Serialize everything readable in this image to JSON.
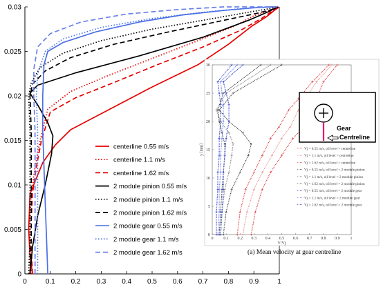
{
  "chart_data": [
    {
      "type": "line",
      "xlim": [
        0,
        1
      ],
      "ylim": [
        0,
        0.03
      ],
      "x_ticks": [
        0,
        0.1,
        0.2,
        0.3,
        0.4,
        0.5,
        0.6,
        0.7,
        0.8,
        0.9,
        1
      ],
      "y_ticks": [
        0,
        0.005,
        0.01,
        0.015,
        0.02,
        0.025,
        0.03
      ],
      "grid": false,
      "legend_position": "center-left",
      "series": [
        {
          "name": "centerline 0.55 m/s",
          "color": "#e60000",
          "dash": "solid",
          "x": [
            0.03,
            0.02,
            0.015,
            0.02,
            0.07,
            0.12,
            0.18,
            0.32,
            0.5,
            0.68,
            0.8,
            0.89,
            0.95,
            0.98,
            1.0
          ],
          "y": [
            0,
            0.002,
            0.005,
            0.009,
            0.0125,
            0.0145,
            0.0162,
            0.0183,
            0.021,
            0.0235,
            0.0258,
            0.0278,
            0.0289,
            0.0296,
            0.03
          ]
        },
        {
          "name": "centerline 1.1 m/s",
          "color": "#e60000",
          "dash": "dot",
          "x": [
            0.025,
            0.02,
            0.02,
            0.025,
            0.04,
            0.06,
            0.09,
            0.18,
            0.32,
            0.5,
            0.68,
            0.82,
            0.9,
            0.96,
            0.99
          ],
          "y": [
            0,
            0.003,
            0.006,
            0.009,
            0.012,
            0.015,
            0.0185,
            0.0205,
            0.0222,
            0.0242,
            0.0262,
            0.0278,
            0.029,
            0.0296,
            0.03
          ]
        },
        {
          "name": "centerline 1.62 m/s",
          "color": "#e60000",
          "dash": "dash",
          "x": [
            0.03,
            0.025,
            0.025,
            0.03,
            0.045,
            0.065,
            0.1,
            0.2,
            0.35,
            0.52,
            0.7,
            0.85,
            0.93,
            0.97,
            0.99
          ],
          "y": [
            0,
            0.003,
            0.006,
            0.009,
            0.012,
            0.015,
            0.0182,
            0.0198,
            0.0215,
            0.0235,
            0.0255,
            0.0274,
            0.0287,
            0.0295,
            0.03
          ]
        },
        {
          "name": "2 module pinion 0.55 m/s",
          "color": "#000000",
          "dash": "solid",
          "x": [
            0.02,
            0.03,
            0.05,
            0.08,
            0.105,
            0.11,
            0.09,
            0.05,
            0.02,
            0.05,
            0.2,
            0.45,
            0.7,
            0.88,
            0.96,
            0.995
          ],
          "y": [
            0,
            0.003,
            0.0065,
            0.01,
            0.0135,
            0.0155,
            0.017,
            0.019,
            0.0203,
            0.0212,
            0.0226,
            0.0245,
            0.0266,
            0.0285,
            0.0295,
            0.03
          ]
        },
        {
          "name": "2 module pinion 1.1 m/s",
          "color": "#000000",
          "dash": "dot",
          "x": [
            0.015,
            0.02,
            0.02,
            0.02,
            0.02,
            0.015,
            0.025,
            0.06,
            0.15,
            0.3,
            0.5,
            0.72,
            0.88,
            0.96,
            0.99
          ],
          "y": [
            0,
            0.004,
            0.008,
            0.012,
            0.016,
            0.02,
            0.0215,
            0.0232,
            0.0248,
            0.0262,
            0.0275,
            0.0286,
            0.0294,
            0.0298,
            0.03
          ]
        },
        {
          "name": "2 module pinion 1.62 m/s",
          "color": "#000000",
          "dash": "dash",
          "x": [
            0.02,
            0.025,
            0.025,
            0.025,
            0.025,
            0.02,
            0.03,
            0.08,
            0.18,
            0.35,
            0.55,
            0.75,
            0.9,
            0.97,
            0.995
          ],
          "y": [
            0,
            0.004,
            0.008,
            0.012,
            0.016,
            0.02,
            0.0213,
            0.0228,
            0.0243,
            0.0258,
            0.0271,
            0.0283,
            0.0292,
            0.0297,
            0.03
          ]
        },
        {
          "name": "2 module gear 0.55 m/s",
          "color": "#4a6fe6",
          "dash": "solid",
          "x": [
            0.09,
            0.085,
            0.08,
            0.075,
            0.07,
            0.07,
            0.075,
            0.09,
            0.15,
            0.28,
            0.45,
            0.62,
            0.78,
            0.9,
            0.97,
            0.99
          ],
          "y": [
            0,
            0.004,
            0.008,
            0.012,
            0.016,
            0.02,
            0.0235,
            0.025,
            0.026,
            0.0272,
            0.0283,
            0.0291,
            0.0296,
            0.0299,
            0.03,
            0.03
          ]
        },
        {
          "name": "2 module gear 1.1 m/s",
          "color": "#4a6fe6",
          "dash": "dot",
          "x": [
            0.05,
            0.05,
            0.05,
            0.05,
            0.05,
            0.045,
            0.05,
            0.08,
            0.15,
            0.3,
            0.5,
            0.7,
            0.85,
            0.95,
            0.99
          ],
          "y": [
            0,
            0.004,
            0.008,
            0.012,
            0.016,
            0.02,
            0.0225,
            0.025,
            0.0264,
            0.0277,
            0.0287,
            0.0294,
            0.0298,
            0.03,
            0.03
          ]
        },
        {
          "name": "2 module gear 1.62 m/s",
          "color": "#6a80ea",
          "dash": "dash",
          "x": [
            0.04,
            0.04,
            0.04,
            0.04,
            0.04,
            0.035,
            0.035,
            0.05,
            0.1,
            0.22,
            0.4,
            0.6,
            0.78,
            0.92,
            0.99
          ],
          "y": [
            0,
            0.004,
            0.008,
            0.012,
            0.016,
            0.02,
            0.023,
            0.0255,
            0.027,
            0.0283,
            0.0292,
            0.0297,
            0.03,
            0.03,
            0.03
          ]
        }
      ]
    },
    {
      "type": "line",
      "title": "(a) Mean velocity at gear centreline",
      "xlabel": "V/Vj",
      "ylabel": "y [mm]",
      "xlim": [
        0,
        1
      ],
      "ylim": [
        0,
        30
      ],
      "x_ticks": [
        "0",
        "0.1",
        "0.2",
        "0.3",
        "0.4",
        "0.5",
        "0.6",
        "0.7",
        "0.8",
        "0.9",
        "1"
      ],
      "y_ticks": [
        "0",
        "5",
        "10",
        "15",
        "20",
        "25",
        "30"
      ],
      "legend_position": "right",
      "inset_label": {
        "gear": "Gear",
        "centreline": "Centreline"
      },
      "legend": [
        {
          "text": "Vj = 0.55 m/s, oil level = centreline",
          "color": "#e04040",
          "marker": "+"
        },
        {
          "text": "Vj = 1.1 m/s, oil level = centreline",
          "color": "#e89090",
          "marker": "x"
        },
        {
          "text": "Vj = 1.62 m/s, oil level = centreline",
          "color": "#e04040",
          "marker": "+"
        },
        {
          "text": "Vj = 0.55 m/s, oil level = 2 module pinion",
          "color": "#444444",
          "marker": "+"
        },
        {
          "text": "Vj = 1.1 m/s, oil level = 2 module pinion",
          "color": "#888888",
          "marker": "x"
        },
        {
          "text": "Vj = 1.62 m/s, oil level = 2 module pinion",
          "color": "#444444",
          "marker": "+"
        },
        {
          "text": "Vj = 0.55 m/s, oil level = 2 module gear",
          "color": "#3040d0",
          "marker": "+"
        },
        {
          "text": "Vj = 1.1 m/s, oil level = 2 module gear",
          "color": "#7080e0",
          "marker": "x"
        },
        {
          "text": "Vj = 1.62 m/s, oil level = 2 module gear",
          "color": "#3040d0",
          "marker": "+"
        }
      ],
      "series": [
        {
          "color": "#e04040",
          "x": [
            0.28,
            0.31,
            0.36,
            0.42,
            0.5,
            0.58,
            0.66,
            0.72,
            0.75,
            0.8,
            0.9
          ],
          "y": [
            0,
            4,
            8,
            11,
            14,
            17,
            19,
            22,
            24,
            27,
            30
          ]
        },
        {
          "color": "#e89090",
          "x": [
            0.22,
            0.25,
            0.3,
            0.36,
            0.43,
            0.5,
            0.56,
            0.62,
            0.67,
            0.75,
            0.86
          ],
          "y": [
            0,
            4,
            8,
            11,
            14,
            17,
            19,
            22,
            24,
            27,
            30
          ]
        },
        {
          "color": "#e04040",
          "x": [
            0.18,
            0.2,
            0.24,
            0.3,
            0.36,
            0.42,
            0.48,
            0.55,
            0.62,
            0.72,
            0.84
          ],
          "y": [
            0,
            4,
            8,
            11,
            14,
            17,
            19,
            22,
            24,
            27,
            30
          ]
        },
        {
          "color": "#444444",
          "x": [
            0.08,
            0.1,
            0.14,
            0.2,
            0.26,
            0.28,
            0.22,
            0.12,
            0.05,
            0.15,
            0.5
          ],
          "y": [
            0,
            4,
            8,
            11,
            14,
            16,
            18,
            20,
            22,
            25,
            30
          ]
        },
        {
          "color": "#888888",
          "x": [
            0.06,
            0.07,
            0.09,
            0.12,
            0.14,
            0.15,
            0.12,
            0.06,
            0.03,
            0.1,
            0.42
          ],
          "y": [
            0,
            4,
            8,
            11,
            14,
            16,
            18,
            20,
            22,
            25,
            30
          ]
        },
        {
          "color": "#444444",
          "x": [
            0.05,
            0.06,
            0.07,
            0.08,
            0.09,
            0.09,
            0.07,
            0.05,
            0.04,
            0.08,
            0.35
          ],
          "y": [
            0,
            4,
            8,
            11,
            14,
            16,
            18,
            20,
            22,
            25,
            30
          ]
        },
        {
          "color": "#3040d0",
          "x": [
            0.06,
            0.07,
            0.08,
            0.08,
            0.09,
            0.1,
            0.12,
            0.12,
            0.1,
            0.08,
            0.22
          ],
          "y": [
            0,
            4,
            8,
            11,
            14,
            17,
            20,
            23,
            25,
            27,
            30
          ]
        },
        {
          "color": "#7080e0",
          "x": [
            0.04,
            0.05,
            0.05,
            0.06,
            0.06,
            0.07,
            0.08,
            0.08,
            0.07,
            0.06,
            0.18
          ],
          "y": [
            0,
            4,
            8,
            11,
            14,
            17,
            20,
            23,
            25,
            27,
            30
          ]
        },
        {
          "color": "#3040d0",
          "x": [
            0.03,
            0.03,
            0.04,
            0.04,
            0.05,
            0.05,
            0.06,
            0.06,
            0.05,
            0.04,
            0.14
          ],
          "y": [
            0,
            4,
            8,
            11,
            14,
            17,
            20,
            23,
            25,
            27,
            30
          ]
        }
      ]
    }
  ]
}
